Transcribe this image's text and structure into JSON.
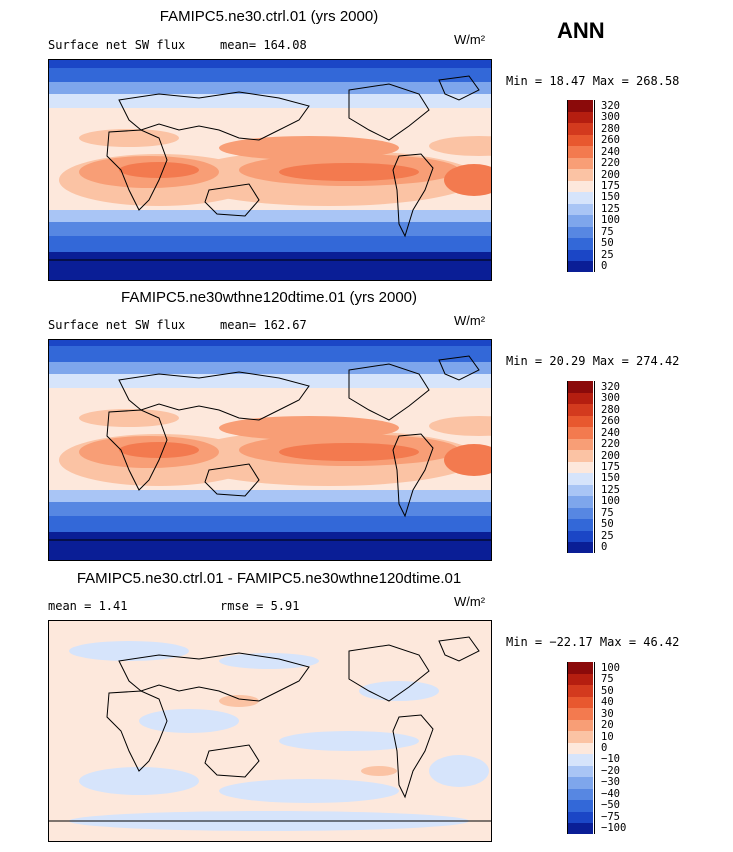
{
  "season": "ANN",
  "units_text": "W/m²",
  "chart_data": [
    {
      "type": "heatmap",
      "title": "FAMIPC5.ne30.ctrl.01 (yrs 2000)",
      "variable": "Surface net SW flux",
      "stat_line": "mean= 164.08",
      "minmax": "Min =  18.47 Max = 268.58",
      "levels": [
        "320",
        "300",
        "280",
        "260",
        "240",
        "220",
        "200",
        "175",
        "150",
        "125",
        "100",
        "75",
        "50",
        "25",
        "0"
      ],
      "colors": [
        "#8b0a0a",
        "#b51e10",
        "#d33a1e",
        "#e8582f",
        "#f37a4f",
        "#f89e76",
        "#fbc3a4",
        "#fde8dc",
        "#d6e4fb",
        "#a9c5f5",
        "#7ea6ec",
        "#5787e2",
        "#3368d8",
        "#1b46c6",
        "#0a1e96"
      ]
    },
    {
      "type": "heatmap",
      "title": "FAMIPC5.ne30wthne120dtime.01 (yrs 2000)",
      "variable": "Surface net SW flux",
      "stat_line": "mean= 162.67",
      "minmax": "Min =  20.29 Max = 274.42",
      "levels": [
        "320",
        "300",
        "280",
        "260",
        "240",
        "220",
        "200",
        "175",
        "150",
        "125",
        "100",
        "75",
        "50",
        "25",
        "0"
      ],
      "colors": [
        "#8b0a0a",
        "#b51e10",
        "#d33a1e",
        "#e8582f",
        "#f37a4f",
        "#f89e76",
        "#fbc3a4",
        "#fde8dc",
        "#d6e4fb",
        "#a9c5f5",
        "#7ea6ec",
        "#5787e2",
        "#3368d8",
        "#1b46c6",
        "#0a1e96"
      ]
    },
    {
      "type": "heatmap",
      "title": "FAMIPC5.ne30.ctrl.01 - FAMIPC5.ne30wthne120dtime.01",
      "mean_text": "mean =    1.41",
      "rmse_text": "rmse =    5.91",
      "minmax": "Min = −22.17 Max =  46.42",
      "levels": [
        "100",
        "75",
        "50",
        "40",
        "30",
        "20",
        "10",
        "0",
        "−10",
        "−20",
        "−30",
        "−40",
        "−50",
        "−75",
        "−100"
      ],
      "colors": [
        "#8b0a0a",
        "#b51e10",
        "#d33a1e",
        "#e8582f",
        "#f37a4f",
        "#f89e76",
        "#fbc3a4",
        "#fde8dc",
        "#d6e4fb",
        "#a9c5f5",
        "#7ea6ec",
        "#5787e2",
        "#3368d8",
        "#1b46c6",
        "#0a1e96"
      ]
    }
  ]
}
